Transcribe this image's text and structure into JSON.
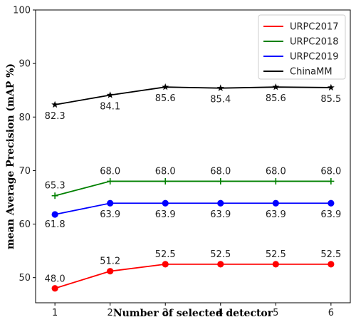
{
  "chart_data": {
    "type": "line",
    "xlabel": "Number of selected detector",
    "ylabel": "mean Average Precision (mAP %)",
    "x": [
      1,
      2,
      3,
      4,
      5,
      6
    ],
    "xlim": [
      0.65,
      6.35
    ],
    "ylim": [
      45.3,
      100
    ],
    "yticks": [
      50,
      60,
      70,
      80,
      90,
      100
    ],
    "grid": false,
    "legend_position": "top-right",
    "series": [
      {
        "name": "URPC2017",
        "color": "#ff0000",
        "marker": "circle",
        "values": [
          48.0,
          51.2,
          52.5,
          52.5,
          52.5,
          52.5
        ],
        "labels": [
          "48.0",
          "51.2",
          "52.5",
          "52.5",
          "52.5",
          "52.5"
        ]
      },
      {
        "name": "URPC2018",
        "color": "#008000",
        "marker": "plus",
        "values": [
          65.3,
          68.0,
          68.0,
          68.0,
          68.0,
          68.0
        ],
        "labels": [
          "65.3",
          "68.0",
          "68.0",
          "68.0",
          "68.0",
          "68.0"
        ]
      },
      {
        "name": "URPC2019",
        "color": "#0000ff",
        "marker": "circle",
        "values": [
          61.8,
          63.9,
          63.9,
          63.9,
          63.9,
          63.9
        ],
        "labels": [
          "61.8",
          "63.9",
          "63.9",
          "63.9",
          "63.9",
          "63.9"
        ]
      },
      {
        "name": "ChinaMM",
        "color": "#000000",
        "marker": "star",
        "values": [
          82.3,
          84.1,
          85.6,
          85.4,
          85.6,
          85.5
        ],
        "labels": [
          "82.3",
          "84.1",
          "85.6",
          "85.4",
          "85.6",
          "85.5"
        ]
      }
    ]
  }
}
